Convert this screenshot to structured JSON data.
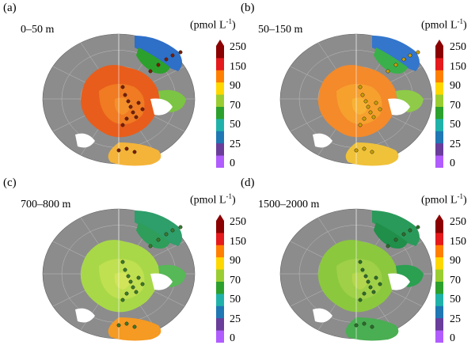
{
  "panels": [
    {
      "letter": "(a)",
      "depth": "0–50 m",
      "unit_main": "(pmol L",
      "unit_sup": "-1",
      "unit_close": ")",
      "theme": "hot"
    },
    {
      "letter": "(b)",
      "depth": "50–150 m",
      "unit_main": "(pmol L",
      "unit_sup": "-1",
      "unit_close": ")",
      "theme": "warm"
    },
    {
      "letter": "(c)",
      "depth": "700–800 m",
      "unit_main": "(pmol L",
      "unit_sup": "-1",
      "unit_close": ")",
      "theme": "cool"
    },
    {
      "letter": "(d)",
      "depth": "1500–2000 m",
      "unit_main": "(pmol L",
      "unit_sup": "-1",
      "unit_close": ")",
      "theme": "cooler"
    }
  ],
  "colorbar_ticks": [
    "250",
    "150",
    "90",
    "70",
    "50",
    "25",
    "0"
  ],
  "colors": {
    "land": "#8c8c8c",
    "grid": "#bcbcbc",
    "colorbar_stops": [
      "#8b0000",
      "#e41a1c",
      "#ff7f00",
      "#ffd700",
      "#9acd32",
      "#2ca02c",
      "#20b2aa",
      "#1f77b4",
      "#6a3d9a",
      "#b15cff"
    ]
  }
}
